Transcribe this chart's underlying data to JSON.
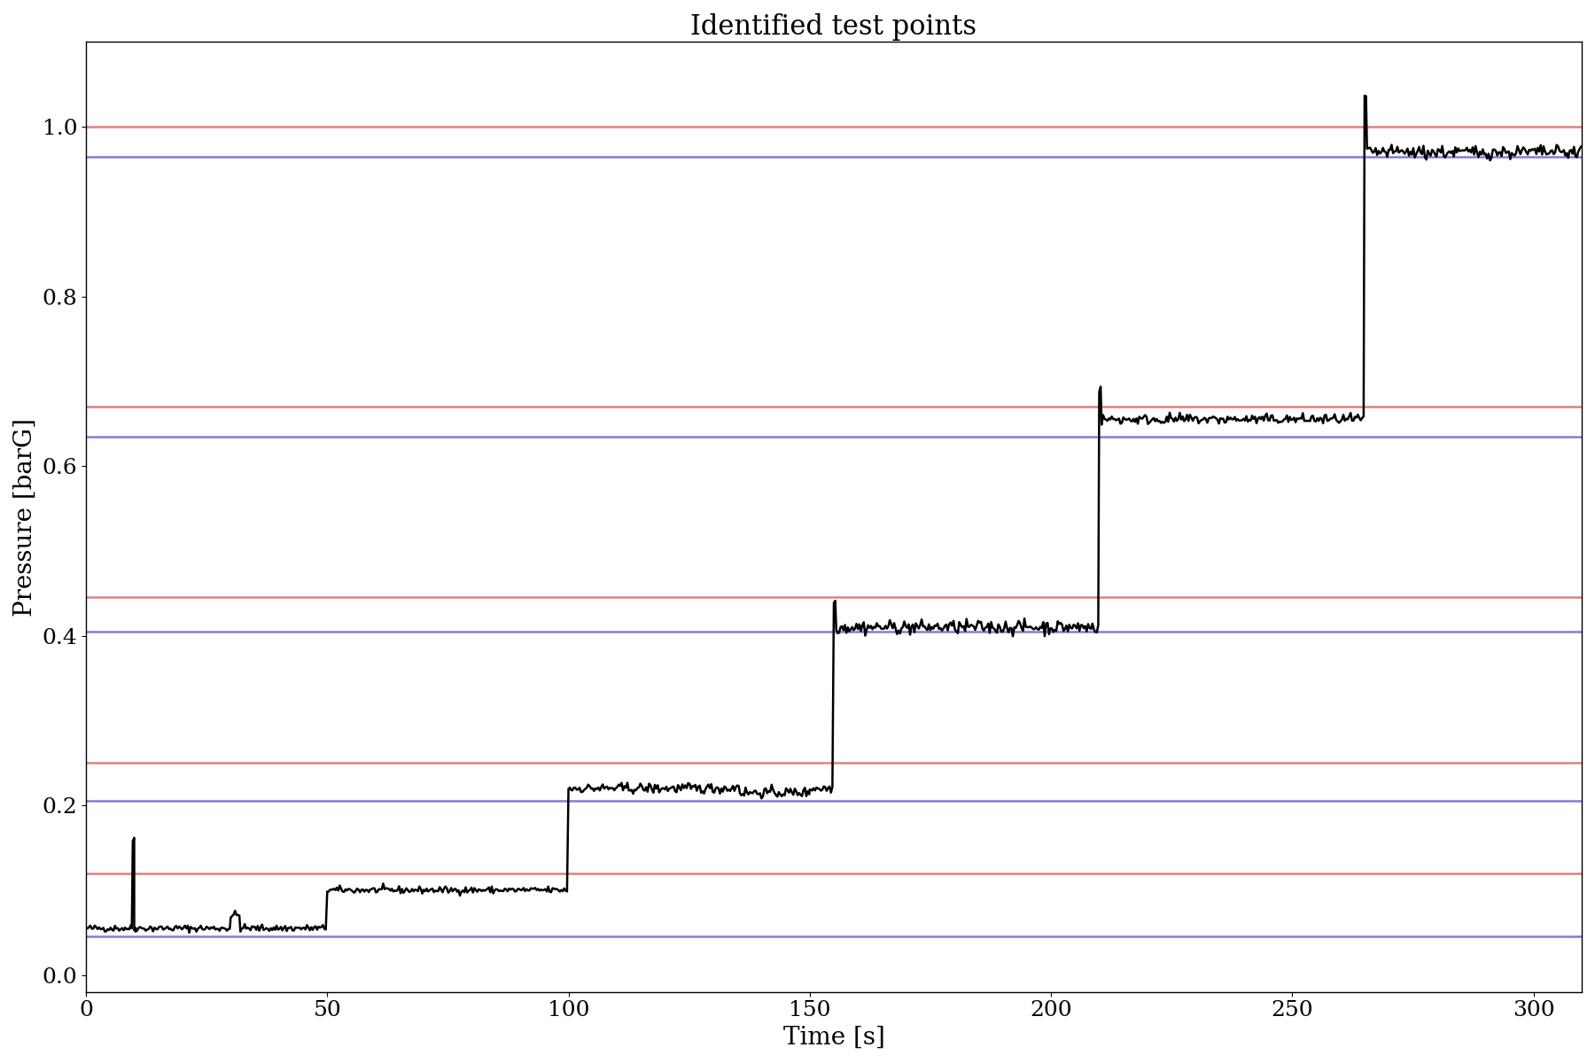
{
  "title": "Identified test points",
  "xlabel": "Time [s]",
  "ylabel": "Pressure [barG]",
  "xlim": [
    0,
    310
  ],
  "ylim": [
    -0.02,
    1.1
  ],
  "figsize": [
    18.0,
    12.0
  ],
  "dpi": 100,
  "signal_color": "black",
  "signal_linewidth": 1.8,
  "red_line_color": "#e08080",
  "blue_line_color": "#8080d0",
  "hline_linewidth": 1.8,
  "bin_edges": [
    {
      "lower": 0.045,
      "upper": 0.12
    },
    {
      "lower": 0.205,
      "upper": 0.25
    },
    {
      "lower": 0.405,
      "upper": 0.445
    },
    {
      "lower": 0.635,
      "upper": 0.67
    },
    {
      "lower": 0.965,
      "upper": 1.0
    }
  ],
  "noise_amplitude": 0.003,
  "noise_seed": 42,
  "tick_fontsize": 18,
  "label_fontsize": 20,
  "title_fontsize": 22,
  "xticks": [
    0,
    50,
    100,
    150,
    200,
    250,
    300
  ],
  "yticks": [
    0.0,
    0.2,
    0.4,
    0.6,
    0.8,
    1.0
  ],
  "font_family": "DejaVu Serif"
}
